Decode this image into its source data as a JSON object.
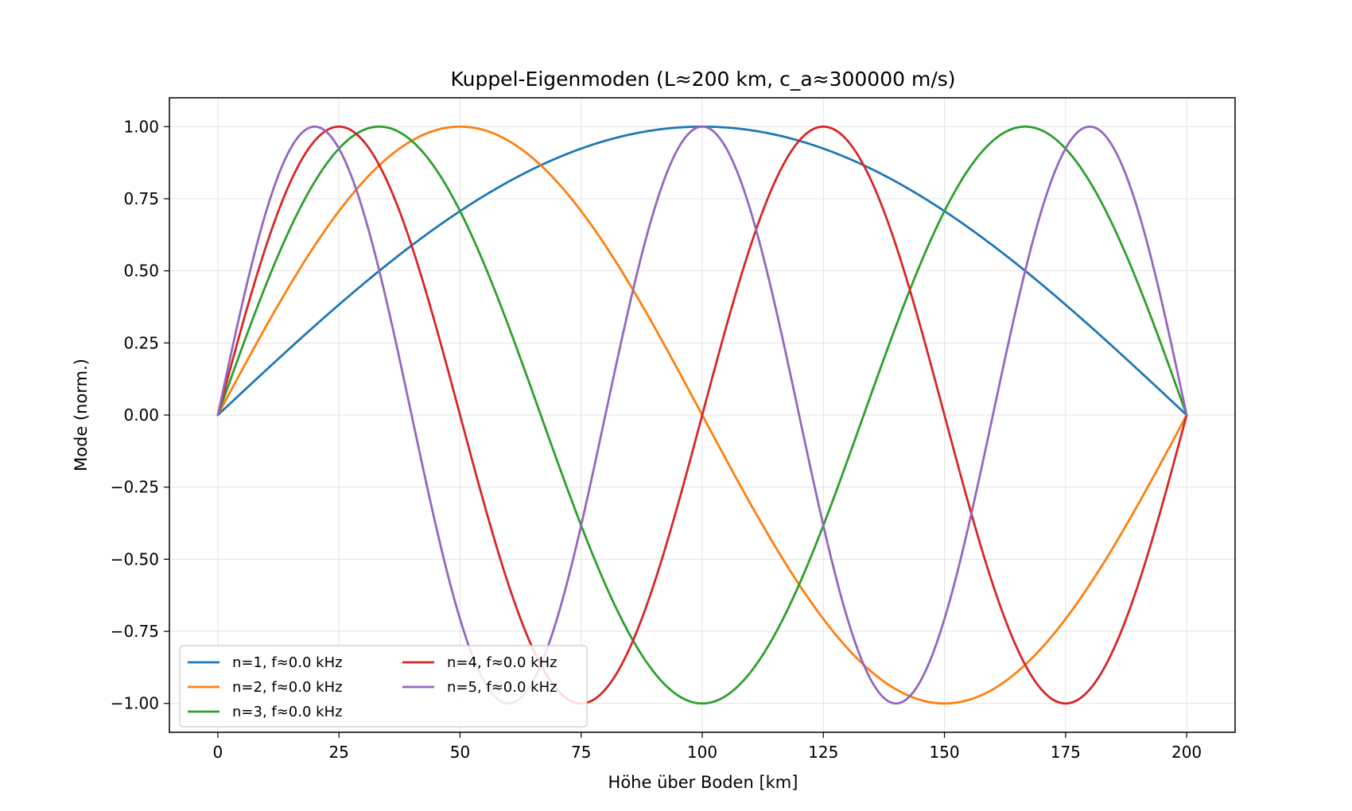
{
  "chart_data": {
    "type": "line",
    "title": "Kuppel-Eigenmoden (L≈200 km, c_a≈300000 m/s)",
    "xlabel": "Höhe über Boden [km]",
    "ylabel": "Mode (norm.)",
    "xlim": [
      -10,
      210
    ],
    "ylim": [
      -1.1,
      1.1
    ],
    "x_ticks": [
      0,
      25,
      50,
      75,
      100,
      125,
      150,
      175,
      200
    ],
    "x_tick_labels": [
      "0",
      "25",
      "50",
      "75",
      "100",
      "125",
      "150",
      "175",
      "200"
    ],
    "y_ticks": [
      1.0,
      0.75,
      0.5,
      0.25,
      0.0,
      -0.25,
      -0.5,
      -0.75,
      -1.0
    ],
    "y_tick_labels": [
      "1.00",
      "0.75",
      "0.50",
      "0.25",
      "0.00",
      "−0.25",
      "−0.50",
      "−0.75",
      "−1.00"
    ],
    "grid": true,
    "legend_position": "lower-left",
    "legend_columns": 2,
    "x": [
      0,
      5,
      10,
      15,
      20,
      25,
      30,
      35,
      40,
      45,
      50,
      55,
      60,
      65,
      70,
      75,
      80,
      85,
      90,
      95,
      100,
      105,
      110,
      115,
      120,
      125,
      130,
      135,
      140,
      145,
      150,
      155,
      160,
      165,
      170,
      175,
      180,
      185,
      190,
      195,
      200
    ],
    "series": [
      {
        "name": "n=1, f≈0.0 kHz",
        "color": "#1f77b4",
        "values": [
          0,
          0.078,
          0.156,
          0.233,
          0.309,
          0.383,
          0.454,
          0.522,
          0.588,
          0.649,
          0.707,
          0.76,
          0.809,
          0.853,
          0.891,
          0.924,
          0.951,
          0.972,
          0.988,
          0.997,
          1,
          0.997,
          0.988,
          0.972,
          0.951,
          0.924,
          0.891,
          0.853,
          0.809,
          0.76,
          0.707,
          0.649,
          0.588,
          0.522,
          0.454,
          0.383,
          0.309,
          0.233,
          0.156,
          0.078,
          0
        ]
      },
      {
        "name": "n=2, f≈0.0 kHz",
        "color": "#ff7f0e",
        "values": [
          0,
          0.156,
          0.309,
          0.454,
          0.588,
          0.707,
          0.809,
          0.891,
          0.951,
          0.988,
          1,
          0.988,
          0.951,
          0.891,
          0.809,
          0.707,
          0.588,
          0.454,
          0.309,
          0.156,
          0,
          -0.156,
          -0.309,
          -0.454,
          -0.588,
          -0.707,
          -0.809,
          -0.891,
          -0.951,
          -0.988,
          -1,
          -0.988,
          -0.951,
          -0.891,
          -0.809,
          -0.707,
          -0.588,
          -0.454,
          -0.309,
          -0.156,
          0
        ]
      },
      {
        "name": "n=3, f≈0.0 kHz",
        "color": "#2ca02c",
        "values": [
          0,
          0.233,
          0.454,
          0.649,
          0.809,
          0.924,
          0.988,
          0.997,
          0.951,
          0.853,
          0.707,
          0.522,
          0.309,
          0.078,
          -0.156,
          -0.383,
          -0.588,
          -0.76,
          -0.891,
          -0.972,
          -1,
          -0.972,
          -0.891,
          -0.76,
          -0.588,
          -0.383,
          -0.156,
          0.078,
          0.309,
          0.522,
          0.707,
          0.853,
          0.951,
          0.997,
          0.988,
          0.924,
          0.809,
          0.649,
          0.454,
          0.233,
          0
        ]
      },
      {
        "name": "n=4, f≈0.0 kHz",
        "color": "#d62728",
        "values": [
          0,
          0.309,
          0.588,
          0.809,
          0.951,
          1,
          0.951,
          0.809,
          0.588,
          0.309,
          0,
          -0.309,
          -0.588,
          -0.809,
          -0.951,
          -1,
          -0.951,
          -0.809,
          -0.588,
          -0.309,
          0,
          0.309,
          0.588,
          0.809,
          0.951,
          1,
          0.951,
          0.809,
          0.588,
          0.309,
          0,
          -0.309,
          -0.588,
          -0.809,
          -0.951,
          -1,
          -0.951,
          -0.809,
          -0.588,
          -0.309,
          0
        ]
      },
      {
        "name": "n=5, f≈0.0 kHz",
        "color": "#9467bd",
        "values": [
          0,
          0.383,
          0.707,
          0.924,
          1,
          0.924,
          0.707,
          0.383,
          0,
          -0.383,
          -0.707,
          -0.924,
          -1,
          -0.924,
          -0.707,
          -0.383,
          0,
          0.383,
          0.707,
          0.924,
          1,
          0.924,
          0.707,
          0.383,
          0,
          -0.383,
          -0.707,
          -0.924,
          -1,
          -0.924,
          -0.707,
          -0.383,
          0,
          0.383,
          0.707,
          0.924,
          1,
          0.924,
          0.707,
          0.383,
          0
        ]
      }
    ]
  }
}
